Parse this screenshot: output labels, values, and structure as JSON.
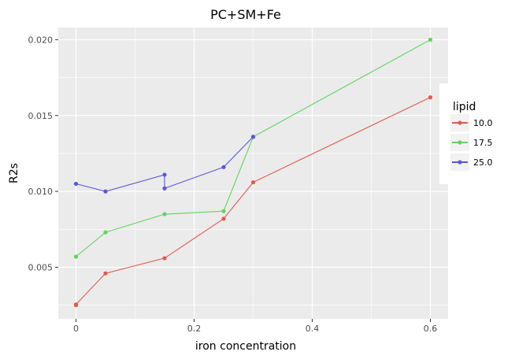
{
  "chart_data": {
    "type": "line",
    "title": "PC+SM+Fe",
    "xlabel": "iron concentration",
    "ylabel": "R2s",
    "xlim": [
      -0.03,
      0.63
    ],
    "ylim": [
      0.0016,
      0.0208
    ],
    "x_ticks": [
      0,
      0.2,
      0.4,
      0.6
    ],
    "x_tick_labels": [
      "0",
      "0.2",
      "0.4",
      "0.6"
    ],
    "y_ticks": [
      0.005,
      0.01,
      0.015,
      0.02
    ],
    "y_tick_labels": [
      "0.005",
      "0.010",
      "0.015",
      "0.020"
    ],
    "grid": true,
    "legend": {
      "title": "lipid",
      "position": "right"
    },
    "series": [
      {
        "name": "10.0",
        "color": "#E2594B",
        "points": [
          [
            0,
            0.0025
          ],
          [
            0,
            0.00255
          ],
          [
            0.05,
            0.0046
          ],
          [
            0.15,
            0.0056
          ],
          [
            0.25,
            0.0082
          ],
          [
            0.3,
            0.0106
          ],
          [
            0.6,
            0.0162
          ]
        ]
      },
      {
        "name": "17.5",
        "color": "#5CD65C",
        "points": [
          [
            0,
            0.0057
          ],
          [
            0.05,
            0.0073
          ],
          [
            0.15,
            0.0085
          ],
          [
            0.25,
            0.0087
          ],
          [
            0.3,
            0.0136
          ],
          [
            0.6,
            0.02
          ]
        ]
      },
      {
        "name": "25.0",
        "color": "#5B55DE",
        "points": [
          [
            0,
            0.0105
          ],
          [
            0.05,
            0.01
          ],
          [
            0.15,
            0.0111
          ],
          [
            0.15,
            0.0102
          ],
          [
            0.25,
            0.0116
          ],
          [
            0.3,
            0.0136
          ]
        ]
      }
    ]
  }
}
